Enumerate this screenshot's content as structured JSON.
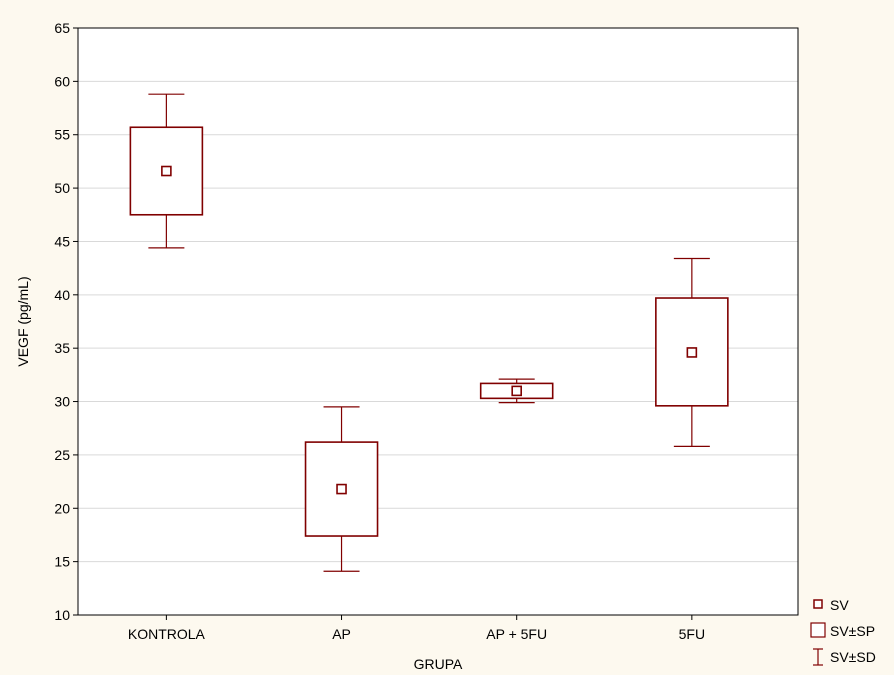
{
  "colors": {
    "background": "#fdf9ef",
    "plot_background": "#ffffff",
    "series": "#800000",
    "grid": "#d9d9d9",
    "axis": "#000000"
  },
  "chart_data": {
    "type": "box",
    "title": "",
    "xlabel": "GRUPA",
    "ylabel": "VEGF (pg/mL)",
    "ylim": [
      10,
      65
    ],
    "yticks": [
      10,
      15,
      20,
      25,
      30,
      35,
      40,
      45,
      50,
      55,
      60,
      65
    ],
    "grid": true,
    "legend_position": "bottom-right",
    "categories": [
      "KONTROLA",
      "AP",
      "AP + 5FU",
      "5FU"
    ],
    "groups": [
      {
        "name": "KONTROLA",
        "mean": 51.6,
        "se_low": 47.5,
        "se_high": 55.7,
        "sd_low": 44.4,
        "sd_high": 58.8
      },
      {
        "name": "AP",
        "mean": 21.8,
        "se_low": 17.4,
        "se_high": 26.2,
        "sd_low": 14.1,
        "sd_high": 29.5
      },
      {
        "name": "AP + 5FU",
        "mean": 31.0,
        "se_low": 30.3,
        "se_high": 31.7,
        "sd_low": 29.9,
        "sd_high": 32.1
      },
      {
        "name": "5FU",
        "mean": 34.6,
        "se_low": 29.6,
        "se_high": 39.7,
        "sd_low": 25.8,
        "sd_high": 43.4
      }
    ],
    "legend": {
      "entries": [
        {
          "symbol": "mean",
          "label": "SV"
        },
        {
          "symbol": "box",
          "label": "SV±SP"
        },
        {
          "symbol": "whisker",
          "label": "SV±SD"
        }
      ]
    }
  }
}
